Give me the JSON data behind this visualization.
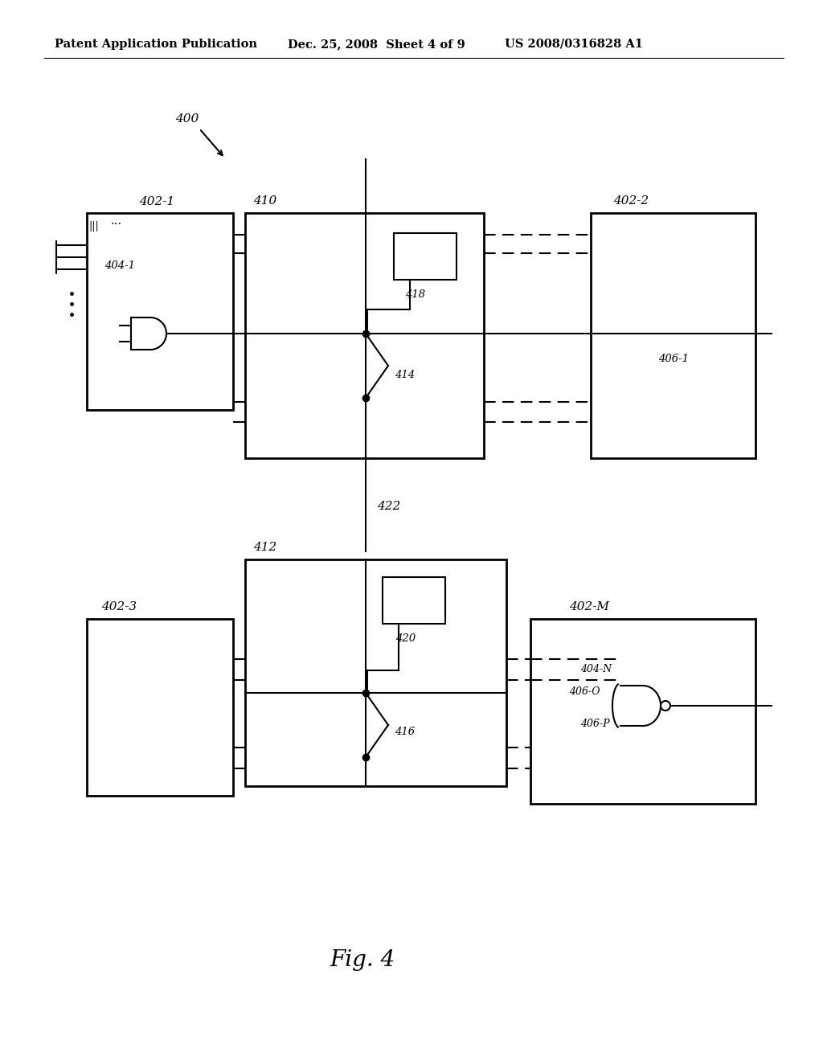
{
  "bg_color": "#ffffff",
  "header_left": "Patent Application Publication",
  "header_mid": "Dec. 25, 2008  Sheet 4 of 9",
  "header_right": "US 2008/0316828 A1",
  "fig_label": "Fig. 4",
  "label_400": "400",
  "label_402_1": "402-1",
  "label_402_2": "402-2",
  "label_402_3": "402-3",
  "label_402_M": "402-M",
  "label_410": "410",
  "label_412": "412",
  "label_414": "414",
  "label_416": "416",
  "label_418": "418",
  "label_420": "420",
  "label_422": "422",
  "label_404_1": "404-1",
  "label_404_N": "404-N",
  "label_406_1": "406-1",
  "label_406_O": "406-O",
  "label_406_P": "406-P"
}
